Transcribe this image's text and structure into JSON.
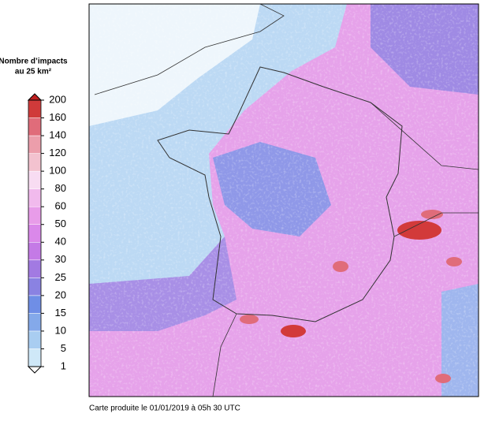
{
  "legend": {
    "title": [
      "Nombre d’impacts",
      "au 25 km²"
    ],
    "levels": [
      1,
      5,
      10,
      15,
      20,
      25,
      30,
      40,
      50,
      60,
      80,
      100,
      120,
      140,
      160,
      200
    ],
    "colors": [
      "#cfe8f8",
      "#a9cdf1",
      "#84a9ea",
      "#6f8ee6",
      "#8a82e2",
      "#a27ae2",
      "#c47ae6",
      "#da88ea",
      "#e89ce9",
      "#f1baed",
      "#f8dcf2",
      "#f3c2cf",
      "#ec9eab",
      "#e06c7a",
      "#d03a3a"
    ],
    "over_color": "#c02020",
    "under_color": "#ffffff"
  },
  "footer": "Carte produite le 01/01/2019 à 05h 30 UTC"
}
